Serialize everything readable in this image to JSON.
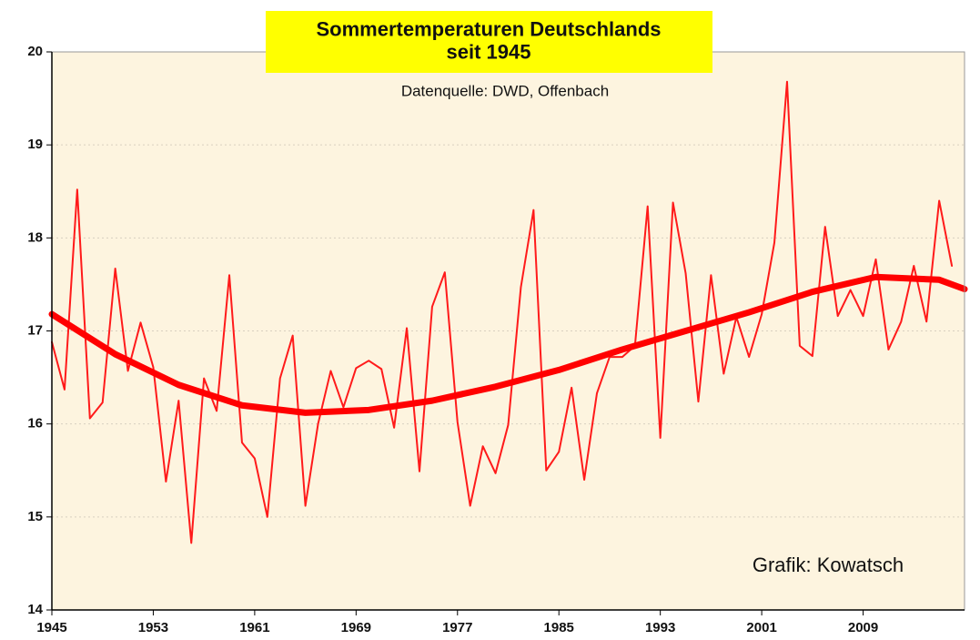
{
  "chart_data": {
    "type": "line",
    "title": "Sommertemperaturen Deutschlands\nseit 1945",
    "subtitle": "Datenquelle: DWD, Offenbach",
    "annotation": "Grafik: Kowatsch",
    "xlim": [
      1945,
      2017
    ],
    "ylim": [
      14,
      20
    ],
    "xticks": [
      1945,
      1953,
      1961,
      1969,
      1977,
      1985,
      1993,
      2001,
      2009
    ],
    "yticks": [
      14,
      15,
      16,
      17,
      18,
      19,
      20
    ],
    "grid": true,
    "series": [
      {
        "color": "#ff1a1a",
        "x": [
          1945,
          1946,
          1947,
          1948,
          1949,
          1950,
          1951,
          1952,
          1953,
          1954,
          1955,
          1956,
          1957,
          1958,
          1959,
          1960,
          1961,
          1962,
          1963,
          1964,
          1965,
          1966,
          1967,
          1968,
          1969,
          1970,
          1971,
          1972,
          1973,
          1974,
          1975,
          1976,
          1977,
          1978,
          1979,
          1980,
          1981,
          1982,
          1983,
          1984,
          1985,
          1986,
          1987,
          1988,
          1989,
          1990,
          1991,
          1992,
          1993,
          1994,
          1995,
          1996,
          1997,
          1998,
          1999,
          2000,
          2001,
          2002,
          2003,
          2004,
          2005,
          2006,
          2007,
          2008,
          2009,
          2010,
          2011,
          2012,
          2013,
          2014,
          2015,
          2016
        ],
        "values": [
          16.88,
          16.37,
          18.52,
          16.06,
          16.23,
          17.67,
          16.57,
          17.09,
          16.61,
          15.38,
          16.25,
          14.72,
          16.49,
          16.14,
          17.6,
          15.8,
          15.63,
          15.0,
          16.49,
          16.95,
          15.12,
          16.0,
          16.57,
          16.18,
          16.6,
          16.68,
          16.59,
          15.96,
          17.03,
          15.49,
          17.26,
          17.63,
          16.02,
          15.12,
          15.76,
          15.47,
          15.99,
          17.47,
          18.3,
          15.5,
          15.7,
          16.39,
          15.4,
          16.33,
          16.72,
          16.72,
          16.84,
          18.34,
          15.85,
          18.38,
          17.62,
          16.24,
          17.6,
          16.54,
          17.15,
          16.72,
          17.18,
          17.95,
          19.68,
          16.84,
          16.73,
          18.12,
          17.16,
          17.44,
          17.16,
          17.77,
          16.8,
          17.1,
          17.7,
          17.1,
          18.4,
          17.7
        ],
        "width": 2
      },
      {
        "color": "#ff0000",
        "x": [
          1945,
          1950,
          1955,
          1960,
          1965,
          1970,
          1975,
          1980,
          1985,
          1990,
          1995,
          2000,
          2005,
          2010,
          2015,
          2017
        ],
        "values": [
          17.18,
          16.75,
          16.42,
          16.2,
          16.12,
          16.15,
          16.25,
          16.4,
          16.58,
          16.8,
          17.0,
          17.2,
          17.42,
          17.58,
          17.55,
          17.45
        ],
        "width": 7
      }
    ]
  }
}
